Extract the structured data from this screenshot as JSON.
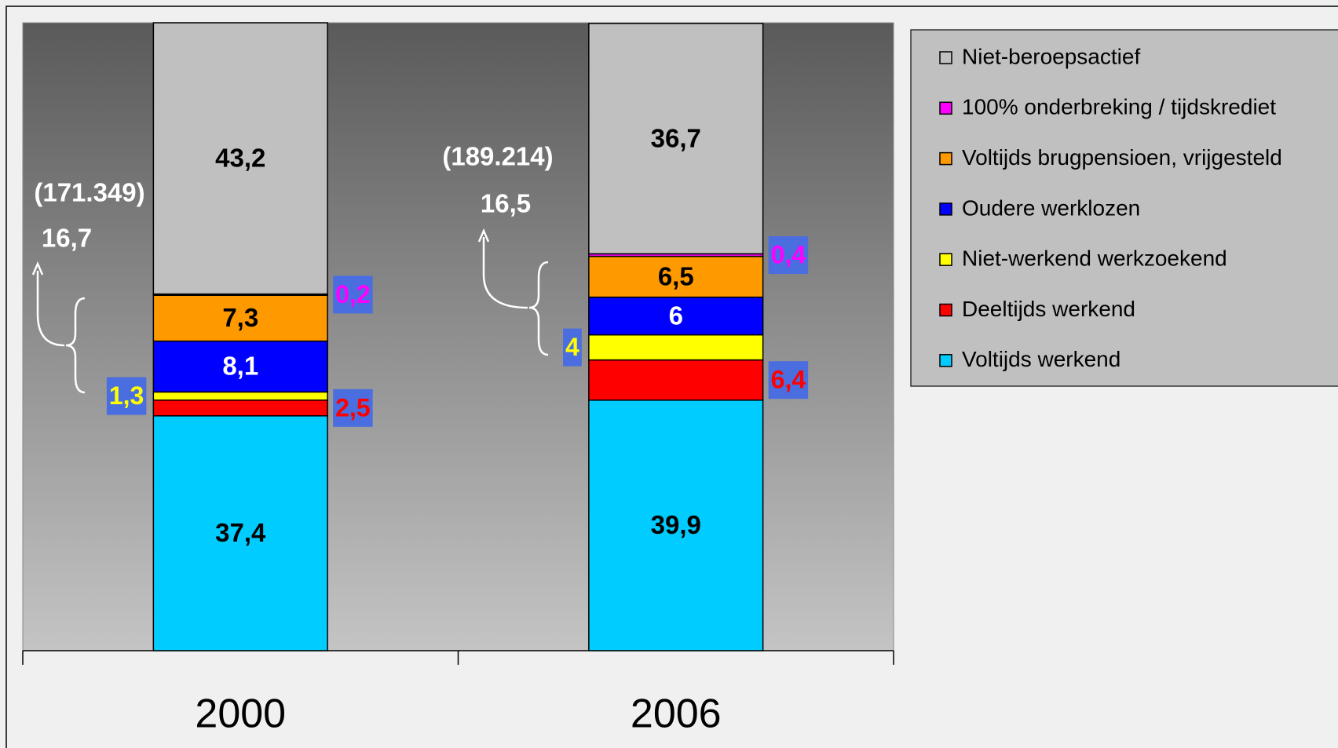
{
  "chart_data": {
    "type": "stacked_bar",
    "categories": [
      "2000",
      "2006"
    ],
    "ylim": [
      0,
      100
    ],
    "series": [
      {
        "name": "Voltijds werkend",
        "color": "#00ccff",
        "values": [
          37.4,
          39.9
        ],
        "value_labels": [
          "37,4",
          "39,9"
        ]
      },
      {
        "name": "Deeltijds werkend",
        "color": "#ff0000",
        "values": [
          2.5,
          6.4
        ],
        "value_labels": [
          "2,5",
          "6,4"
        ]
      },
      {
        "name": "Niet-werkend werkzoekend",
        "color": "#ffff00",
        "values": [
          1.3,
          4
        ],
        "value_labels": [
          "1,3",
          "4"
        ]
      },
      {
        "name": "Oudere werklozen",
        "color": "#0000ff",
        "values": [
          8.1,
          6
        ],
        "value_labels": [
          "8,1",
          "6"
        ]
      },
      {
        "name": "Voltijds brugpensioen, vrijgesteld",
        "color": "#ff9900",
        "values": [
          7.3,
          6.5
        ],
        "value_labels": [
          "7,3",
          "6,5"
        ]
      },
      {
        "name": "100% onderbreking / tijdskrediet",
        "color": "#ff00ff",
        "values": [
          0.2,
          0.4
        ],
        "value_labels": [
          "0,2",
          "0,4"
        ]
      },
      {
        "name": "Niet-beroepsactief",
        "color": "#c0c0c0",
        "values": [
          43.2,
          36.7
        ],
        "value_labels": [
          "43,2",
          "36,7"
        ]
      }
    ],
    "annotations": [
      "(171.349)",
      "16,7",
      "(189.214)",
      "16,5"
    ],
    "legend": "right"
  }
}
